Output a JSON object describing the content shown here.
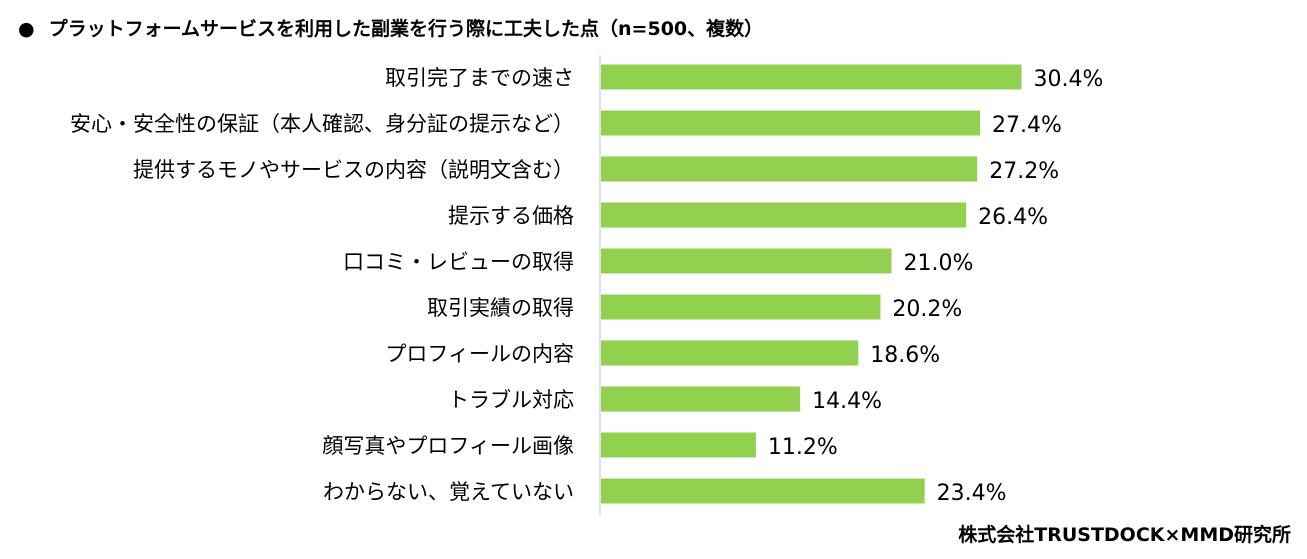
{
  "chart_data": {
    "type": "bar",
    "orientation": "horizontal",
    "title": "プラットフォームサービスを利用した副業を行う際に工夫した点（n=500、複数）",
    "title_bullet": "●",
    "categories": [
      "取引完了までの速さ",
      "安心・安全性の保証（本人確認、身分証の提示など）",
      "提供するモノやサービスの内容（説明文含む）",
      "提示する価格",
      "口コミ・レビューの取得",
      "取引実績の取得",
      "プロフィールの内容",
      "トラブル対応",
      "顔写真やプロフィール画像",
      "わからない、覚えていない"
    ],
    "values": [
      30.4,
      27.4,
      27.2,
      26.4,
      21.0,
      20.2,
      18.6,
      14.4,
      11.2,
      23.4
    ],
    "value_labels": [
      "30.4%",
      "27.4%",
      "27.2%",
      "26.4%",
      "21.0%",
      "20.2%",
      "18.6%",
      "14.4%",
      "11.2%",
      "23.4%"
    ],
    "unit": "%",
    "xlim": [
      0,
      50
    ],
    "grid": false,
    "bar_color": "#92d050",
    "axis_color": "#d9d9d9"
  },
  "credit": "株式会社TRUSTDOCK×MMD研究所"
}
